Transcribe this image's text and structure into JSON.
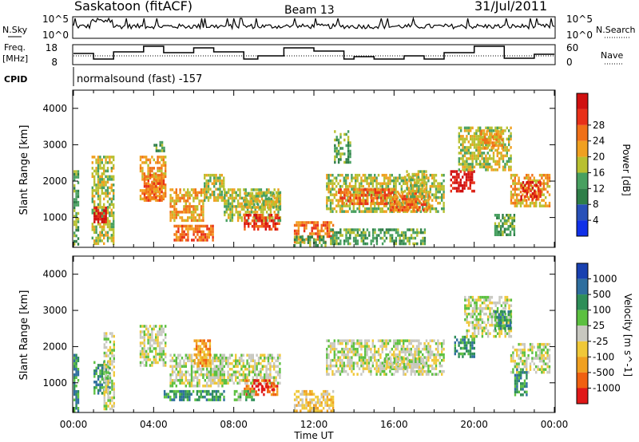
{
  "header": {
    "station": "Saskatoon (fitACF)",
    "beam": "Beam 13",
    "date": "31/Jul/2011"
  },
  "noise_panel": {
    "left_label": "N.Sky",
    "right_label": "N.Search",
    "left_ticks": [
      "10^5",
      "10^0"
    ],
    "right_ticks": [
      "10^5",
      "10^0"
    ]
  },
  "freq_panel": {
    "left_label_1": "Freq.",
    "left_label_2": "[MHz]",
    "right_label": "Nave",
    "left_ticks": [
      "18",
      "8"
    ],
    "right_ticks": [
      "60",
      "0"
    ]
  },
  "cpid": {
    "label": "CPID",
    "value": "normalsound (fast) -157"
  },
  "x_axis": {
    "label": "Time UT",
    "ticks": [
      "00:00",
      "04:00",
      "08:00",
      "12:00",
      "16:00",
      "20:00",
      "00:00"
    ]
  },
  "chart_data": [
    {
      "type": "heatmap",
      "title": "Power",
      "ylabel": "Slant Range [km]",
      "xlabel": "",
      "x_range_hours": [
        0,
        24
      ],
      "ylim": [
        180,
        4500
      ],
      "y_ticks": [
        1000,
        2000,
        3000,
        4000
      ],
      "colorbar": {
        "label": "Power [dB]",
        "ticks": [
          "4",
          "8",
          "12",
          "16",
          "20",
          "24",
          "28"
        ],
        "colors": [
          "#1030e8",
          "#2850b8",
          "#2e7e48",
          "#48a060",
          "#b8c030",
          "#f0a020",
          "#f07018",
          "#e83018",
          "#d01010"
        ]
      },
      "regions": [
        {
          "t": [
            0.0,
            0.2
          ],
          "r": [
            250,
            2300
          ],
          "level": 3
        },
        {
          "t": [
            0.9,
            2.0
          ],
          "r": [
            300,
            2700
          ],
          "level": 4
        },
        {
          "t": [
            1.0,
            1.6
          ],
          "r": [
            900,
            1300
          ],
          "level": 8
        },
        {
          "t": [
            3.3,
            4.6
          ],
          "r": [
            1500,
            2700
          ],
          "level": 5
        },
        {
          "t": [
            3.5,
            4.5
          ],
          "r": [
            1500,
            2200
          ],
          "level": 6
        },
        {
          "t": [
            4.0,
            4.5
          ],
          "r": [
            2800,
            3100
          ],
          "level": 3
        },
        {
          "t": [
            4.8,
            6.5
          ],
          "r": [
            900,
            1800
          ],
          "level": 5
        },
        {
          "t": [
            5.0,
            7.0
          ],
          "r": [
            400,
            800
          ],
          "level": 6
        },
        {
          "t": [
            6.5,
            7.5
          ],
          "r": [
            1500,
            2200
          ],
          "level": 4
        },
        {
          "t": [
            7.5,
            10.3
          ],
          "r": [
            900,
            1800
          ],
          "level": 4
        },
        {
          "t": [
            8.5,
            10.3
          ],
          "r": [
            700,
            1100
          ],
          "level": 7
        },
        {
          "t": [
            8.5,
            10.3
          ],
          "r": [
            1300,
            1700
          ],
          "level": 4
        },
        {
          "t": [
            11.0,
            13.0
          ],
          "r": [
            350,
            900
          ],
          "level": 6
        },
        {
          "t": [
            11.0,
            12.6
          ],
          "r": [
            200,
            500
          ],
          "level": 3
        },
        {
          "t": [
            12.6,
            18.5
          ],
          "r": [
            1200,
            2200
          ],
          "level": 4
        },
        {
          "t": [
            13.2,
            16.0
          ],
          "r": [
            1400,
            1800
          ],
          "level": 6
        },
        {
          "t": [
            13.0,
            13.8
          ],
          "r": [
            2500,
            3400
          ],
          "level": 3
        },
        {
          "t": [
            15.8,
            17.8
          ],
          "r": [
            1200,
            1700
          ],
          "level": 6
        },
        {
          "t": [
            12.8,
            17.5
          ],
          "r": [
            250,
            700
          ],
          "level": 3
        },
        {
          "t": [
            16.5,
            17.6
          ],
          "r": [
            1600,
            2300
          ],
          "level": 4
        },
        {
          "t": [
            18.8,
            20.0
          ],
          "r": [
            1700,
            2300
          ],
          "level": 8
        },
        {
          "t": [
            19.2,
            21.8
          ],
          "r": [
            2300,
            3500
          ],
          "level": 4
        },
        {
          "t": [
            20.3,
            21.4
          ],
          "r": [
            2900,
            3400
          ],
          "level": 5
        },
        {
          "t": [
            21.0,
            22.0
          ],
          "r": [
            500,
            1100
          ],
          "level": 3
        },
        {
          "t": [
            21.8,
            23.8
          ],
          "r": [
            1300,
            2200
          ],
          "level": 5
        },
        {
          "t": [
            22.3,
            23.3
          ],
          "r": [
            1500,
            2000
          ],
          "level": 7
        }
      ]
    },
    {
      "type": "heatmap",
      "title": "Velocity",
      "ylabel": "Slant Range [km]",
      "xlabel": "Time UT",
      "x_range_hours": [
        0,
        24
      ],
      "ylim": [
        180,
        4500
      ],
      "y_ticks": [
        1000,
        2000,
        3000,
        4000
      ],
      "colorbar": {
        "label": "Velocity [m s^-1]",
        "ticks": [
          "1000",
          "500",
          "100",
          "25",
          "-25",
          "-100",
          "-500",
          "-1000"
        ],
        "colors": [
          "#1840b0",
          "#2e6e9e",
          "#2e8e58",
          "#5cc040",
          "#c8c8c0",
          "#f0c838",
          "#f0a020",
          "#f06010",
          "#e01818"
        ]
      },
      "regions": [
        {
          "t": [
            0.0,
            0.2
          ],
          "r": [
            250,
            1800
          ],
          "level": 2
        },
        {
          "t": [
            1.0,
            1.8
          ],
          "r": [
            700,
            1600
          ],
          "level": 2
        },
        {
          "t": [
            1.5,
            2.0
          ],
          "r": [
            300,
            2400
          ],
          "level": 4
        },
        {
          "t": [
            3.3,
            4.6
          ],
          "r": [
            1500,
            2600
          ],
          "level": 4
        },
        {
          "t": [
            4.5,
            7.5
          ],
          "r": [
            500,
            800
          ],
          "level": 2
        },
        {
          "t": [
            4.8,
            7.5
          ],
          "r": [
            900,
            1800
          ],
          "level": 4
        },
        {
          "t": [
            6.0,
            6.8
          ],
          "r": [
            1500,
            2200
          ],
          "level": 6
        },
        {
          "t": [
            7.0,
            10.3
          ],
          "r": [
            1000,
            1800
          ],
          "level": 4
        },
        {
          "t": [
            8.5,
            10.2
          ],
          "r": [
            700,
            1100
          ],
          "level": 7
        },
        {
          "t": [
            9.2,
            10.0
          ],
          "r": [
            800,
            1000
          ],
          "level": 8
        },
        {
          "t": [
            8.0,
            9.0
          ],
          "r": [
            500,
            800
          ],
          "level": 3
        },
        {
          "t": [
            11.0,
            13.0
          ],
          "r": [
            250,
            800
          ],
          "level": 5
        },
        {
          "t": [
            12.6,
            18.5
          ],
          "r": [
            1200,
            2200
          ],
          "level": 4
        },
        {
          "t": [
            15.5,
            17.5
          ],
          "r": [
            1400,
            1700
          ],
          "level": 4
        },
        {
          "t": [
            19.0,
            20.0
          ],
          "r": [
            1700,
            2300
          ],
          "level": 2
        },
        {
          "t": [
            19.5,
            21.8
          ],
          "r": [
            2300,
            3400
          ],
          "level": 4
        },
        {
          "t": [
            21.0,
            21.8
          ],
          "r": [
            2500,
            3000
          ],
          "level": 2
        },
        {
          "t": [
            21.8,
            23.8
          ],
          "r": [
            1300,
            2100
          ],
          "level": 4
        },
        {
          "t": [
            22.0,
            22.6
          ],
          "r": [
            700,
            1400
          ],
          "level": 2
        }
      ]
    }
  ]
}
